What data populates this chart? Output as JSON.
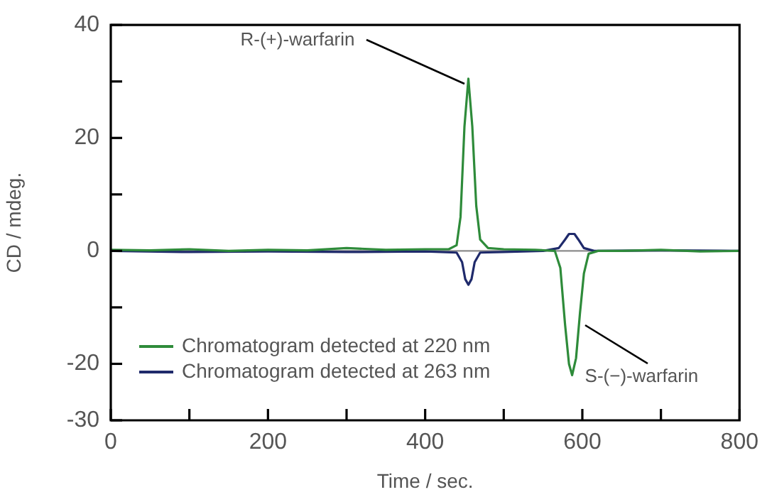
{
  "chart_data": {
    "type": "line",
    "xlabel": "Time / sec.",
    "ylabel": "CD / mdeg.",
    "xlim": [
      0,
      800
    ],
    "ylim": [
      -30,
      40
    ],
    "xticks": [
      0,
      {
        "value": 100,
        "label": null
      },
      200,
      {
        "value": 300,
        "label": null
      },
      400,
      {
        "value": 500,
        "label": null
      },
      600,
      {
        "value": 700,
        "label": null
      },
      800
    ],
    "yticks": [
      -30,
      -20,
      {
        "value": -10,
        "label": null
      },
      0,
      {
        "value": 10,
        "label": null
      },
      20,
      {
        "value": 30,
        "label": null
      },
      40
    ],
    "grid": false,
    "legend": "bottom left",
    "marker": "none",
    "line_style": "solid",
    "ref_lines": [
      {
        "axis": "y",
        "value": 0,
        "label": null,
        "color": "#8c8c8c"
      }
    ],
    "annotations": [
      {
        "text": "R-(+)-warfarin",
        "x": 455,
        "y": 30.5
      },
      {
        "text": "S-(−)-warfarin",
        "x": 596,
        "y": -13
      }
    ],
    "series": [
      {
        "name": "Chromatogram detected at 220 nm",
        "color": "#2e8b3a",
        "x": [
          0,
          50,
          100,
          150,
          200,
          250,
          300,
          350,
          400,
          430,
          440,
          445,
          450,
          455,
          460,
          465,
          470,
          480,
          500,
          540,
          565,
          572,
          578,
          583,
          587,
          592,
          597,
          602,
          608,
          620,
          650,
          700,
          750,
          800
        ],
        "values": [
          0.2,
          0.1,
          0.3,
          0.0,
          0.2,
          0.1,
          0.5,
          0.2,
          0.3,
          0.3,
          1,
          6,
          22,
          30.5,
          22,
          8,
          2,
          0.5,
          0.3,
          0.2,
          0,
          -3,
          -13,
          -20,
          -22,
          -19,
          -11,
          -4,
          -0.5,
          0,
          0,
          0.2,
          -0.1,
          0
        ]
      },
      {
        "name": "Chromatogram detected at 263 nm",
        "color": "#1f2a6b",
        "x": [
          0,
          100,
          200,
          300,
          400,
          440,
          447,
          451,
          455,
          459,
          463,
          470,
          500,
          550,
          570,
          578,
          583,
          590,
          595,
          602,
          615,
          700,
          800
        ],
        "values": [
          0,
          -0.2,
          -0.1,
          -0.2,
          -0.1,
          -0.3,
          -2,
          -5,
          -6,
          -5,
          -2,
          -0.3,
          -0.2,
          0,
          0.5,
          2,
          3,
          3,
          2,
          0.5,
          0,
          0.1,
          0
        ]
      }
    ]
  }
}
